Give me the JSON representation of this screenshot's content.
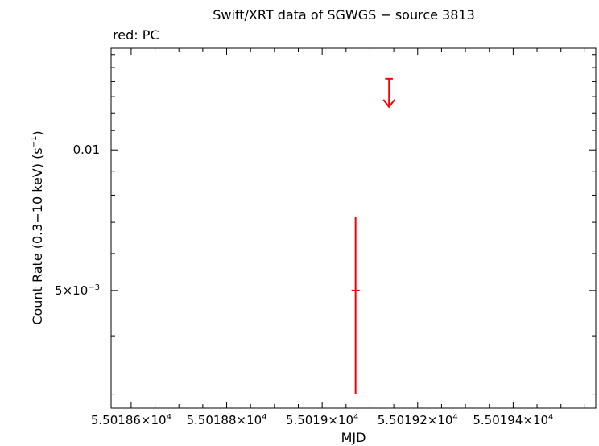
{
  "chart_data": {
    "type": "scatter",
    "title": "Swift/XRT data of SGWGS − source 3813",
    "subtitle": "red: PC",
    "xlabel": "MJD",
    "ylabel": {
      "main": "Count Rate (0.3−10 keV) (s",
      "sup": "−1",
      "close": ")"
    },
    "xlim": [
      55018.558,
      55019.573
    ],
    "ylim": [
      0.0028,
      0.0165
    ],
    "yscale": "log",
    "x_ticks": [
      {
        "value": 55018.6,
        "mantissa": "5.50186×10",
        "exp": "4"
      },
      {
        "value": 55018.8,
        "mantissa": "5.50188×10",
        "exp": "4"
      },
      {
        "value": 55019.0,
        "mantissa": "5.5019×10",
        "exp": "4"
      },
      {
        "value": 55019.2,
        "mantissa": "5.50192×10",
        "exp": "4"
      },
      {
        "value": 55019.4,
        "mantissa": "5.50194×10",
        "exp": "4"
      }
    ],
    "y_ticks": [
      {
        "value": 0.01,
        "mantissa": "0.01",
        "exp": ""
      },
      {
        "value": 0.005,
        "mantissa": "5×10",
        "exp": "−3"
      }
    ],
    "series": [
      {
        "color": "#ff0000",
        "points": [
          {
            "x": 55019.07,
            "y": 0.005,
            "yerr_low": 0.003,
            "yerr_high": 0.0072
          }
        ],
        "upper_limits": [
          {
            "x": 55019.14,
            "y": 0.0142,
            "xerr_low": 55019.132,
            "xerr_high": 55019.148
          }
        ]
      }
    ]
  }
}
